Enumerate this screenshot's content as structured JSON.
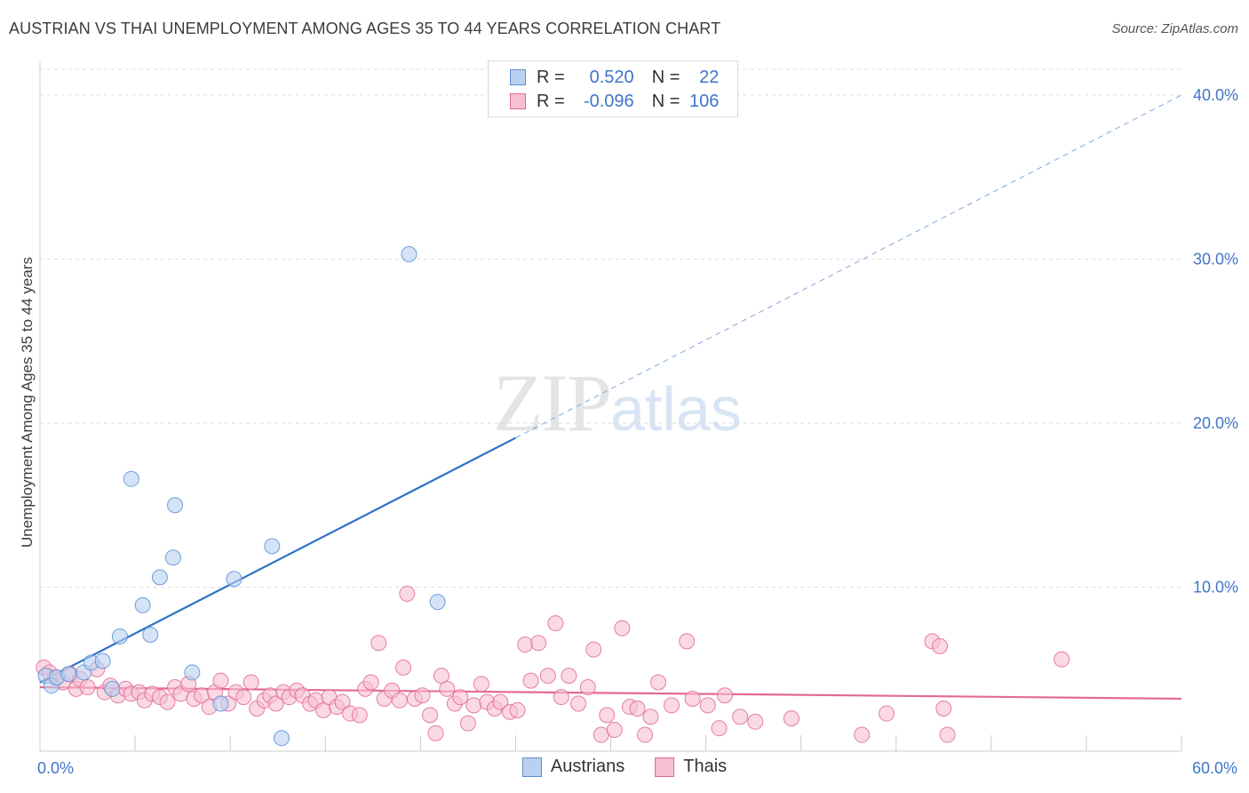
{
  "title": "AUSTRIAN VS THAI UNEMPLOYMENT AMONG AGES 35 TO 44 YEARS CORRELATION CHART",
  "source": "Source: ZipAtlas.com",
  "watermark": {
    "zip": "ZIP",
    "atlas": "atlas"
  },
  "legend": {
    "austrians": {
      "r_label": "R =",
      "r_value": "0.520",
      "n_label": "N =",
      "n_value": "22"
    },
    "thais": {
      "r_label": "R =",
      "r_value": "-0.096",
      "n_label": "N =",
      "n_value": "106"
    }
  },
  "colors": {
    "austrians": "#5b8fd6",
    "austrians_fill": "#b9d0f0",
    "thais": "#e06a95",
    "thais_fill": "#f7bfd2",
    "axis_label": "#3f74c9"
  },
  "chart_data": {
    "type": "scatter",
    "title": "AUSTRIAN VS THAI UNEMPLOYMENT AMONG AGES 35 TO 44 YEARS CORRELATION CHART",
    "xlabel": "",
    "ylabel": "Unemployment Among Ages 35 to 44 years",
    "xlim": [
      0,
      60
    ],
    "ylim": [
      0,
      42
    ],
    "x_ticks": [
      {
        "value": 0,
        "label": "0.0%"
      },
      {
        "value": 60,
        "label": "60.0%"
      }
    ],
    "y_ticks": [
      {
        "value": 10,
        "label": "10.0%"
      },
      {
        "value": 20,
        "label": "20.0%"
      },
      {
        "value": 30,
        "label": "30.0%"
      },
      {
        "value": 40,
        "label": "40.0%"
      }
    ],
    "grid": true,
    "legend_position": "bottom-center",
    "series": [
      {
        "name": "Austrians",
        "trend": {
          "x": [
            0,
            25
          ],
          "y": [
            4.2,
            19.1
          ],
          "extended_to": [
            60,
            40.0
          ]
        },
        "points": [
          [
            0.3,
            4.6
          ],
          [
            0.6,
            4.0
          ],
          [
            0.9,
            4.5
          ],
          [
            1.5,
            4.7
          ],
          [
            2.3,
            4.8
          ],
          [
            2.7,
            5.4
          ],
          [
            3.3,
            5.5
          ],
          [
            3.8,
            3.8
          ],
          [
            4.2,
            7.0
          ],
          [
            4.8,
            16.6
          ],
          [
            5.4,
            8.9
          ],
          [
            5.8,
            7.1
          ],
          [
            6.3,
            10.6
          ],
          [
            7.0,
            11.8
          ],
          [
            7.1,
            15.0
          ],
          [
            8.0,
            4.8
          ],
          [
            9.5,
            2.9
          ],
          [
            10.2,
            10.5
          ],
          [
            12.2,
            12.5
          ],
          [
            12.7,
            0.8
          ],
          [
            19.4,
            30.3
          ],
          [
            20.9,
            9.1
          ]
        ]
      },
      {
        "name": "Thais",
        "trend": {
          "x": [
            0,
            60
          ],
          "y": [
            3.9,
            3.2
          ]
        },
        "points": [
          [
            0.2,
            5.1
          ],
          [
            0.5,
            4.8
          ],
          [
            0.8,
            4.5
          ],
          [
            1.2,
            4.2
          ],
          [
            1.6,
            4.7
          ],
          [
            1.9,
            3.8
          ],
          [
            2.1,
            4.4
          ],
          [
            2.5,
            3.9
          ],
          [
            3.0,
            5.0
          ],
          [
            3.4,
            3.6
          ],
          [
            3.7,
            4.0
          ],
          [
            4.1,
            3.4
          ],
          [
            4.5,
            3.8
          ],
          [
            4.8,
            3.5
          ],
          [
            5.2,
            3.6
          ],
          [
            5.5,
            3.1
          ],
          [
            5.9,
            3.5
          ],
          [
            6.3,
            3.3
          ],
          [
            6.7,
            3.0
          ],
          [
            7.1,
            3.9
          ],
          [
            7.4,
            3.5
          ],
          [
            7.8,
            4.1
          ],
          [
            8.1,
            3.2
          ],
          [
            8.5,
            3.4
          ],
          [
            8.9,
            2.7
          ],
          [
            9.2,
            3.6
          ],
          [
            9.5,
            4.3
          ],
          [
            9.9,
            2.9
          ],
          [
            10.3,
            3.6
          ],
          [
            10.7,
            3.3
          ],
          [
            11.1,
            4.2
          ],
          [
            11.4,
            2.6
          ],
          [
            11.8,
            3.1
          ],
          [
            12.1,
            3.4
          ],
          [
            12.4,
            2.9
          ],
          [
            12.8,
            3.6
          ],
          [
            13.1,
            3.3
          ],
          [
            13.5,
            3.7
          ],
          [
            13.8,
            3.4
          ],
          [
            14.2,
            2.9
          ],
          [
            14.5,
            3.1
          ],
          [
            14.9,
            2.5
          ],
          [
            15.2,
            3.3
          ],
          [
            15.6,
            2.7
          ],
          [
            15.9,
            3.0
          ],
          [
            16.3,
            2.3
          ],
          [
            16.8,
            2.2
          ],
          [
            17.1,
            3.8
          ],
          [
            17.4,
            4.2
          ],
          [
            17.8,
            6.6
          ],
          [
            18.1,
            3.2
          ],
          [
            18.5,
            3.7
          ],
          [
            18.9,
            3.1
          ],
          [
            19.1,
            5.1
          ],
          [
            19.3,
            9.6
          ],
          [
            19.7,
            3.2
          ],
          [
            20.1,
            3.4
          ],
          [
            20.5,
            2.2
          ],
          [
            20.8,
            1.1
          ],
          [
            21.1,
            4.6
          ],
          [
            21.4,
            3.8
          ],
          [
            21.8,
            2.9
          ],
          [
            22.1,
            3.3
          ],
          [
            22.5,
            1.7
          ],
          [
            22.8,
            2.8
          ],
          [
            23.2,
            4.1
          ],
          [
            23.5,
            3.0
          ],
          [
            23.9,
            2.6
          ],
          [
            24.2,
            3.0
          ],
          [
            24.7,
            2.4
          ],
          [
            25.1,
            2.5
          ],
          [
            25.5,
            6.5
          ],
          [
            25.8,
            4.3
          ],
          [
            26.2,
            6.6
          ],
          [
            26.7,
            4.6
          ],
          [
            27.1,
            7.8
          ],
          [
            27.4,
            3.3
          ],
          [
            27.8,
            4.6
          ],
          [
            28.3,
            2.9
          ],
          [
            28.8,
            3.9
          ],
          [
            29.1,
            6.2
          ],
          [
            29.5,
            1.0
          ],
          [
            29.8,
            2.2
          ],
          [
            30.2,
            1.3
          ],
          [
            30.6,
            7.5
          ],
          [
            31.0,
            2.7
          ],
          [
            31.4,
            2.6
          ],
          [
            31.8,
            1.0
          ],
          [
            32.1,
            2.1
          ],
          [
            32.5,
            4.2
          ],
          [
            33.2,
            2.8
          ],
          [
            34.0,
            6.7
          ],
          [
            34.3,
            3.2
          ],
          [
            35.1,
            2.8
          ],
          [
            35.7,
            1.4
          ],
          [
            36.0,
            3.4
          ],
          [
            36.8,
            2.1
          ],
          [
            37.6,
            1.8
          ],
          [
            39.5,
            2.0
          ],
          [
            43.2,
            1.0
          ],
          [
            44.5,
            2.3
          ],
          [
            46.9,
            6.7
          ],
          [
            47.3,
            6.4
          ],
          [
            47.5,
            2.6
          ],
          [
            47.7,
            1.0
          ],
          [
            53.7,
            5.6
          ]
        ]
      }
    ]
  }
}
